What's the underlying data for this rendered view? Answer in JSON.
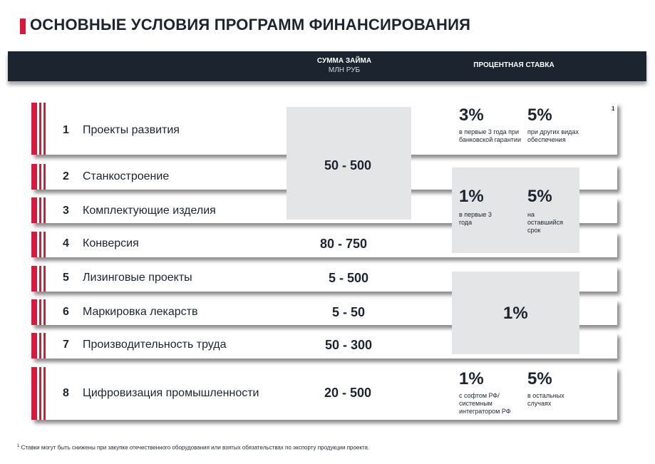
{
  "title": "ОСНОВНЫЕ УСЛОВИЯ ПРОГРАММ ФИНАНСИРОВАНИЯ",
  "header": {
    "amount_label": "СУММА ЗАЙМА",
    "amount_unit": "МЛН РУБ",
    "rate_label": "ПРОЦЕНТНАЯ СТАВКА"
  },
  "programs": [
    {
      "num": "1",
      "name": "Проекты развития"
    },
    {
      "num": "2",
      "name": "Станкостроение"
    },
    {
      "num": "3",
      "name": "Комплектующие изделия"
    },
    {
      "num": "4",
      "name": "Конверсия",
      "amount": "80 - 750"
    },
    {
      "num": "5",
      "name": "Лизинговые проекты",
      "amount": "5 - 500"
    },
    {
      "num": "6",
      "name": "Маркировка лекарств",
      "amount": "5 - 50"
    },
    {
      "num": "7",
      "name": "Производительность труда",
      "amount": "50 - 300"
    },
    {
      "num": "8",
      "name": "Цифровизация промышленности",
      "amount": "20 - 500"
    }
  ],
  "shared_amount_1_3": "50 - 500",
  "rates": {
    "r1": {
      "marker": "1",
      "a_value": "3%",
      "a_note": "в первые 3 года при банковской гарантии",
      "b_value": "5%",
      "b_note": "при других видах обеспечения"
    },
    "r2_4": {
      "a_value": "1%",
      "a_note": "в первые 3 года",
      "b_value": "5%",
      "b_note": "на оставшийся срок"
    },
    "r5_7": {
      "value": "1%"
    },
    "r8": {
      "a_value": "1%",
      "a_note": "с софтом РФ/ системным интегратором РФ",
      "b_value": "5%",
      "b_note": "в остальных случаях"
    }
  },
  "footnote_marker": "1",
  "footnote": "Ставки могут быть снижены при закупке отечественного оборудования или взятых обязательствах по экспорту продукции проекта.",
  "colors": {
    "accent": "#d7193a",
    "header": "#1c2430",
    "panel": "#e4e5e7"
  }
}
